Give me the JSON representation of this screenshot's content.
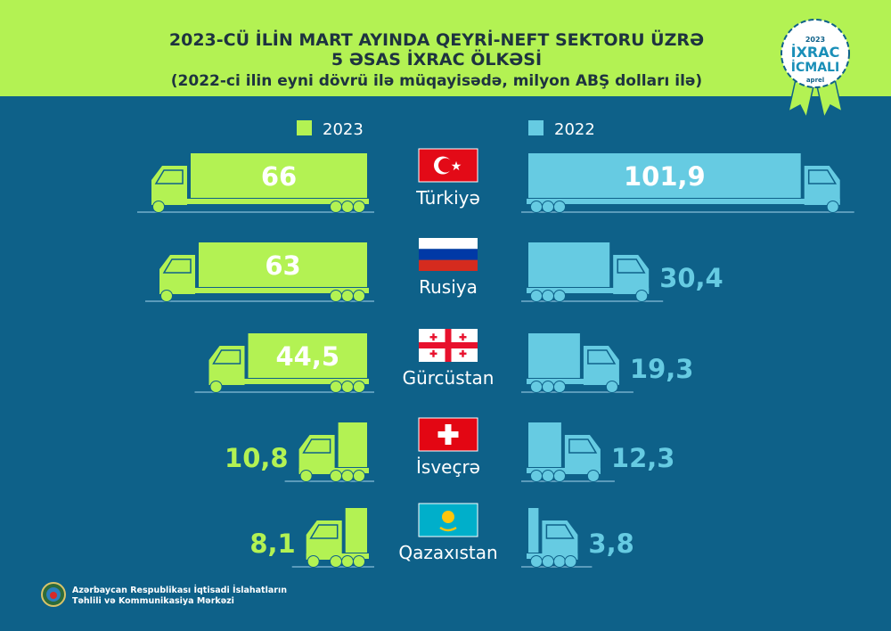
{
  "header": {
    "title_line1": "2023-CÜ İLİN MART AYINDA QEYRİ-NEFT SEKTORU ÜZRƏ",
    "title_line2": "5 ƏSAS İXRAC ÖLKƏSİ",
    "subtitle": "(2022-ci ilin eyni dövrü ilə müqayisədə, milyon ABŞ dolları ilə)"
  },
  "badge": {
    "year": "2023",
    "line1": "İXRAC",
    "line2": "İCMALI",
    "month": "aprel"
  },
  "colors": {
    "header_bg": "#b3f253",
    "page_bg": "#0e6189",
    "series_2023": "#b3f253",
    "series_2022": "#66cbe2"
  },
  "chart_data": {
    "type": "bar",
    "title": "2023-CÜ İLİN MART AYINDA QEYRİ-NEFT SEKTORU ÜZRƏ 5 ƏSAS İXRAC ÖLKƏSİ",
    "subtitle": "(2022-ci ilin eyni dövrü ilə müqayisədə, milyon ABŞ dolları ilə)",
    "categories": [
      "Türkiyə",
      "Rusiya",
      "Gürcüstan",
      "İsveçrə",
      "Qazaxıstan"
    ],
    "series": [
      {
        "name": "2023",
        "values": [
          66,
          63,
          44.5,
          10.8,
          8.1
        ],
        "labels": [
          "66",
          "63",
          "44,5",
          "10,8",
          "8,1"
        ]
      },
      {
        "name": "2022",
        "values": [
          101.9,
          30.4,
          19.3,
          12.3,
          3.8
        ],
        "labels": [
          "101,9",
          "30,4",
          "19,3",
          "12,3",
          "3,8"
        ]
      }
    ],
    "flags": [
      "turkey-flag",
      "russia-flag",
      "georgia-flag",
      "switzerland-flag",
      "kazakhstan-flag"
    ],
    "legend": "top",
    "grid": false
  },
  "footer": {
    "org_line1": "Azərbaycan Respublikası İqtisadi İslahatların",
    "org_line2": "Təhlili və Kommunikasiya Mərkəzi"
  }
}
